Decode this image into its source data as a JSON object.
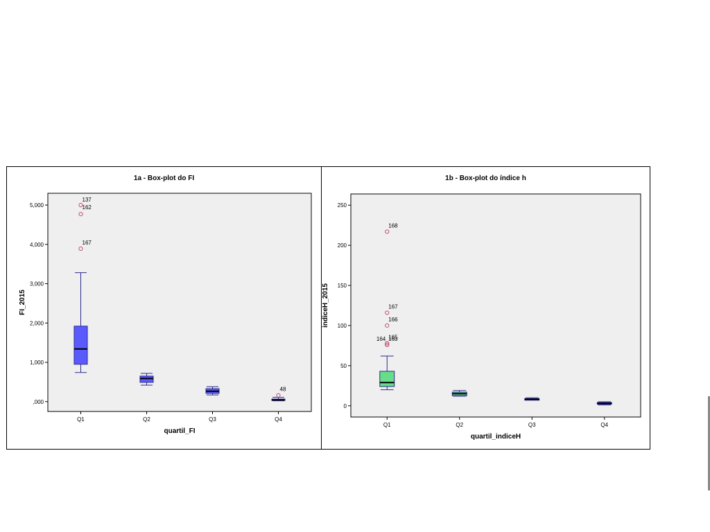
{
  "chart_data": [
    {
      "type": "box",
      "title": "1a - Box-plot do FI",
      "xlabel": "quartil_FI",
      "ylabel": "FI_2015",
      "categories": [
        "Q1",
        "Q2",
        "Q3",
        "Q4"
      ],
      "yticks": [
        0,
        1000,
        2000,
        3000,
        4000,
        5000
      ],
      "ytick_labels": [
        ",000",
        "1,000",
        "2,000",
        "3,000",
        "4,000",
        "5,000"
      ],
      "ylim": [
        -250,
        5300
      ],
      "box_color": "#5a5aff",
      "background": "#efefef",
      "boxes": [
        {
          "category": "Q1",
          "whisker_low": 740,
          "q1": 950,
          "median": 1340,
          "q3": 1920,
          "whisker_high": 3280
        },
        {
          "category": "Q2",
          "whisker_low": 420,
          "q1": 490,
          "median": 590,
          "q3": 650,
          "whisker_high": 720
        },
        {
          "category": "Q3",
          "whisker_low": 170,
          "q1": 210,
          "median": 265,
          "q3": 330,
          "whisker_high": 380
        },
        {
          "category": "Q4",
          "whisker_low": 20,
          "q1": 30,
          "median": 45,
          "q3": 65,
          "whisker_high": 110
        }
      ],
      "outliers": [
        {
          "category": "Q1",
          "value": 5000,
          "label": "137"
        },
        {
          "category": "Q1",
          "value": 4770,
          "label": "162"
        },
        {
          "category": "Q1",
          "value": 3890,
          "label": "167"
        },
        {
          "category": "Q4",
          "value": 160,
          "label": "48"
        }
      ]
    },
    {
      "type": "box",
      "title": "1b - Box-plot do índice h",
      "xlabel": "quartil_indiceH",
      "ylabel": "indiceH_2015",
      "categories": [
        "Q1",
        "Q2",
        "Q3",
        "Q4"
      ],
      "yticks": [
        0,
        50,
        100,
        150,
        200,
        250
      ],
      "ytick_labels": [
        "0",
        "50",
        "100",
        "150",
        "200",
        "250"
      ],
      "ylim": [
        -14,
        264
      ],
      "box_color": "#66dd88",
      "background": "#efefef",
      "boxes": [
        {
          "category": "Q1",
          "whisker_low": 20,
          "q1": 24,
          "median": 29,
          "q3": 43,
          "whisker_high": 62
        },
        {
          "category": "Q2",
          "whisker_low": 12,
          "q1": 12.5,
          "median": 15,
          "q3": 17,
          "whisker_high": 19
        },
        {
          "category": "Q3",
          "whisker_low": 7,
          "q1": 7,
          "median": 8,
          "q3": 9,
          "whisker_high": 10
        },
        {
          "category": "Q4",
          "whisker_low": 1,
          "q1": 2,
          "median": 3,
          "q3": 4,
          "whisker_high": 5
        }
      ],
      "outliers": [
        {
          "category": "Q1",
          "value": 217,
          "label": "168"
        },
        {
          "category": "Q1",
          "value": 116,
          "label": "167"
        },
        {
          "category": "Q1",
          "value": 100,
          "label": "166"
        },
        {
          "category": "Q1",
          "value": 78,
          "label": "165"
        },
        {
          "category": "Q1",
          "value": 76,
          "label": "164"
        },
        {
          "category": "Q1",
          "value": 76,
          "label": "163"
        }
      ]
    }
  ]
}
